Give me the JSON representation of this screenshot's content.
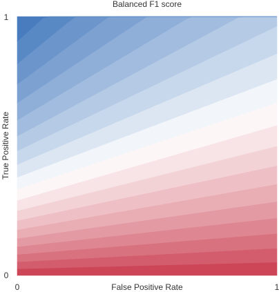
{
  "chart_data": {
    "type": "heatmap",
    "title": "Balanced F1 score",
    "xlabel": "False Positive Rate",
    "ylabel": "True Positive Rate",
    "xlim": [
      0,
      1
    ],
    "ylim": [
      0,
      1
    ],
    "x_tick_labels": [
      "0",
      "1"
    ],
    "y_tick_labels": [
      "0",
      "1"
    ],
    "grid": false,
    "legend": "none",
    "contour_levels": 20,
    "color_scale": {
      "low": "#c9394b",
      "mid": "#ffffff",
      "high": "#3f76bc"
    }
  }
}
